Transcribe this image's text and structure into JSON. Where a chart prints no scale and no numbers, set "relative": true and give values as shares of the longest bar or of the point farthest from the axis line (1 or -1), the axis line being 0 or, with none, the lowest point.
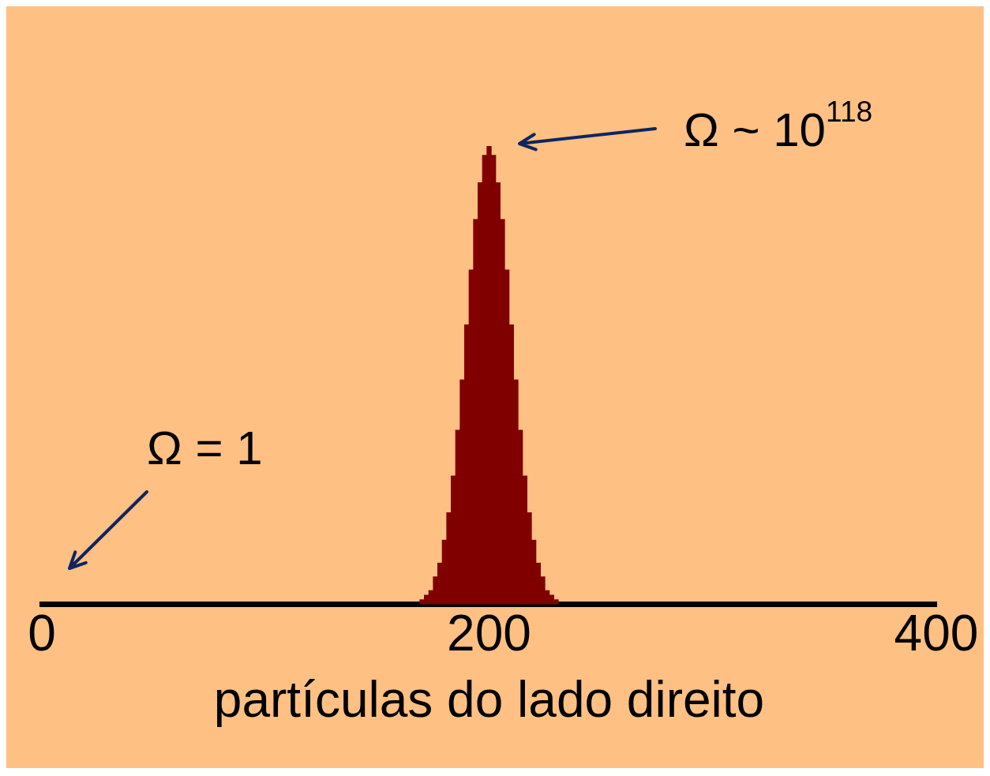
{
  "chart_data": {
    "type": "bar",
    "relative": true,
    "xlabel": "partículas do lado direito",
    "color": "#800000",
    "xlim": [
      0,
      400
    ],
    "xticks": [
      0,
      200,
      400
    ],
    "grid": false,
    "legend": false,
    "x": [
      170,
      172,
      174,
      176,
      178,
      180,
      182,
      184,
      186,
      188,
      190,
      192,
      194,
      196,
      198,
      200,
      202,
      204,
      206,
      208,
      210,
      212,
      214,
      216,
      218,
      220,
      222,
      224,
      226,
      228,
      230
    ],
    "values": [
      0.01,
      0.02,
      0.03,
      0.06,
      0.09,
      0.14,
      0.2,
      0.28,
      0.38,
      0.49,
      0.61,
      0.73,
      0.84,
      0.92,
      0.98,
      1,
      0.98,
      0.92,
      0.84,
      0.73,
      0.61,
      0.49,
      0.38,
      0.28,
      0.2,
      0.14,
      0.09,
      0.06,
      0.03,
      0.02,
      0.01
    ],
    "annotations": [
      "Ω ~ 10$^{118}$",
      "Ω = 1"
    ]
  }
}
